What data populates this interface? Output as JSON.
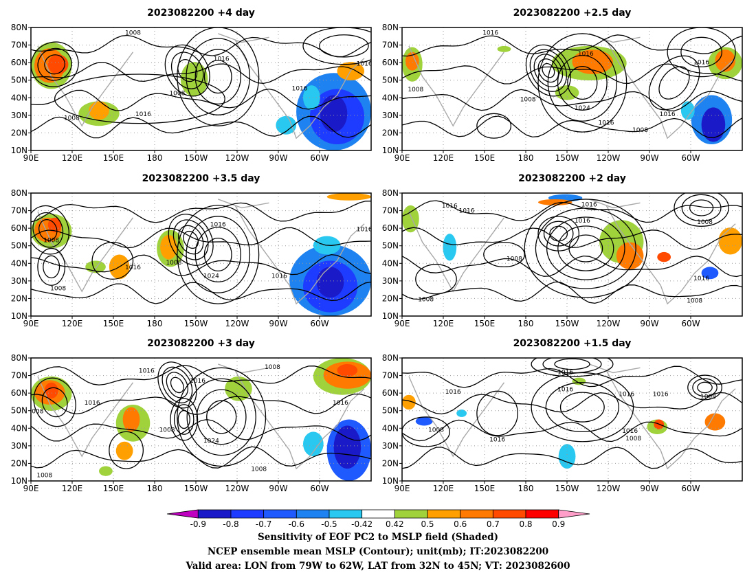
{
  "chart_data": [
    {
      "type": "heatmap",
      "title": "2023082200  +4 day",
      "x_ticks": [
        "90E",
        "120E",
        "150E",
        "180",
        "150W",
        "120W",
        "90W",
        "60W"
      ],
      "y_ticks": [
        "80N",
        "70N",
        "60N",
        "50N",
        "40N",
        "30N",
        "20N",
        "10N"
      ],
      "contour_labels": [
        "1008",
        "1016",
        "1008",
        "1016",
        "1016",
        "1016",
        "1008"
      ]
    },
    {
      "type": "heatmap",
      "title": "2023082200  +2.5 day",
      "x_ticks": [
        "90E",
        "120E",
        "150E",
        "180",
        "150W",
        "120W",
        "90W",
        "60W"
      ],
      "y_ticks": [
        "80N",
        "70N",
        "60N",
        "50N",
        "40N",
        "30N",
        "20N",
        "10N"
      ],
      "contour_labels": [
        "1016",
        "1016",
        "1008",
        "1008",
        "1024",
        "1016",
        "1008",
        "1016",
        "1016"
      ]
    },
    {
      "type": "heatmap",
      "title": "2023082200  +3.5 day",
      "x_ticks": [
        "90E",
        "120E",
        "150E",
        "180",
        "150W",
        "120W",
        "90W",
        "60W"
      ],
      "y_ticks": [
        "80N",
        "70N",
        "60N",
        "50N",
        "40N",
        "30N",
        "20N",
        "10N"
      ],
      "contour_labels": [
        "1008",
        "1016",
        "1008",
        "1016",
        "1008",
        "1024",
        "1016",
        "1016"
      ]
    },
    {
      "type": "heatmap",
      "title": "2023082200  +2 day",
      "x_ticks": [
        "90E",
        "120E",
        "150E",
        "180",
        "150W",
        "120W",
        "90W",
        "60W"
      ],
      "y_ticks": [
        "80N",
        "70N",
        "60N",
        "50N",
        "40N",
        "30N",
        "20N",
        "10N"
      ],
      "contour_labels": [
        "1016",
        "1016",
        "1016",
        "1016",
        "1008",
        "1008",
        "1008",
        "1016",
        "1008"
      ]
    },
    {
      "type": "heatmap",
      "title": "2023082200  +3 day",
      "x_ticks": [
        "90E",
        "120E",
        "150E",
        "180",
        "150W",
        "120W",
        "90W",
        "60W"
      ],
      "y_ticks": [
        "80N",
        "70N",
        "60N",
        "50N",
        "40N",
        "30N",
        "20N",
        "10N"
      ],
      "contour_labels": [
        "1016",
        "1008",
        "1016",
        "008",
        "1008",
        "1016",
        "1024",
        "1016",
        "1008",
        "1008"
      ]
    },
    {
      "type": "heatmap",
      "title": "2023082200  +1.5 day",
      "x_ticks": [
        "90E",
        "120E",
        "150E",
        "180",
        "150W",
        "120W",
        "90W",
        "60W"
      ],
      "y_ticks": [
        "80N",
        "70N",
        "60N",
        "50N",
        "40N",
        "30N",
        "20N",
        "10N"
      ],
      "contour_labels": [
        "1016",
        "1016",
        "1016",
        "1016",
        "1008",
        "1016",
        "1016",
        "1016",
        "1008",
        "1008"
      ]
    }
  ],
  "colorbar": {
    "tick_labels": [
      "-0.9",
      "-0.8",
      "-0.7",
      "-0.6",
      "-0.5",
      "-0.42",
      "0.42",
      "0.5",
      "0.6",
      "0.7",
      "0.8",
      "0.9"
    ],
    "colors": [
      "#c000c0",
      "#1a1ac8",
      "#1e3cff",
      "#1f5aff",
      "#1e82f0",
      "#28c8f0",
      "#ffffff",
      "#a0d23c",
      "#ffa000",
      "#ff7a00",
      "#ff4a00",
      "#ff0000",
      "#ff9ec8"
    ]
  },
  "captions": {
    "line1": "Sensitivity of EOF PC2 to MSLP field (Shaded)",
    "line2": "NCEP ensemble mean MSLP (Contour); unit(mb); IT:2023082200",
    "line3": "Valid area: LON from 79W to 62W, LAT from 32N to 45N; VT: 2023082600"
  }
}
